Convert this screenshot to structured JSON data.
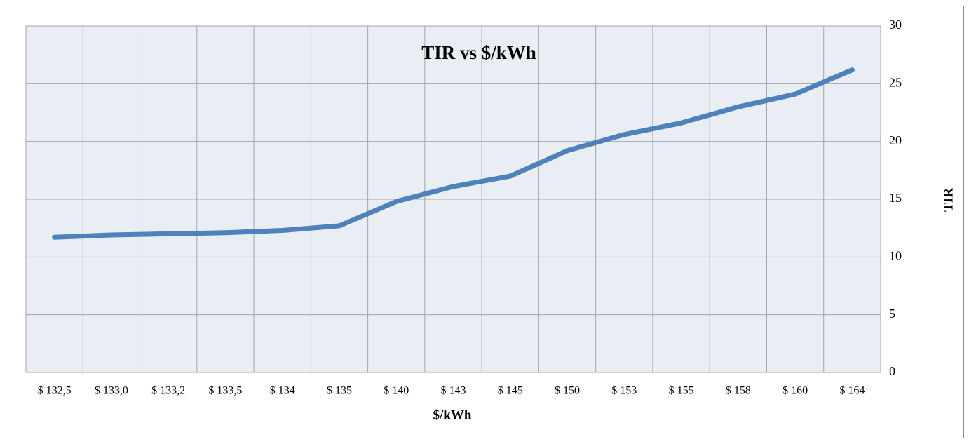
{
  "chart_data": {
    "type": "line",
    "title": "TIR vs $/kWh",
    "x_label": "$/kWh",
    "y_label": "TIR",
    "categories": [
      "$ 132,5",
      "$ 133,0",
      "$ 133,2",
      "$ 133,5",
      "$ 134",
      "$ 135",
      "$ 140",
      "$ 143",
      "$ 145",
      "$ 150",
      "$ 153",
      "$ 155",
      "$ 158",
      "$ 160",
      "$ 164"
    ],
    "values": [
      11.7,
      11.9,
      12.0,
      12.1,
      12.3,
      12.7,
      14.8,
      16.1,
      17.0,
      19.2,
      20.6,
      21.6,
      23.0,
      24.1,
      26.2
    ],
    "color": "#4f81bd",
    "ylim": [
      0,
      30
    ],
    "yticks": [
      0,
      5,
      10,
      15,
      20,
      25,
      30
    ],
    "grid": true,
    "y_axis_side": "right"
  }
}
